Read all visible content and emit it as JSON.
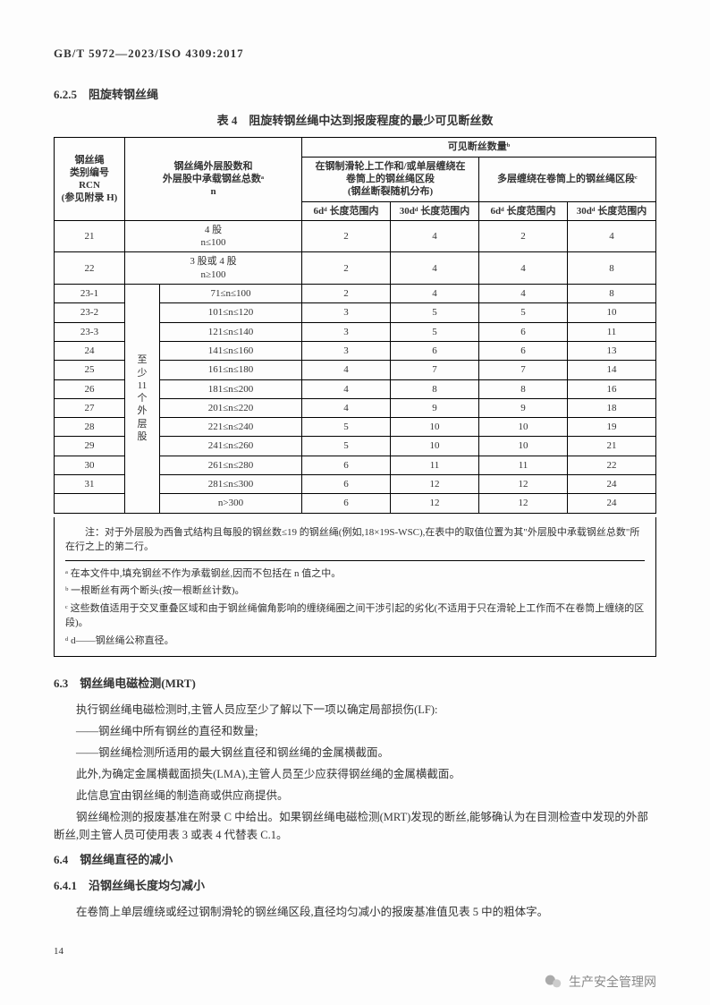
{
  "doc_code": "GB/T 5972—2023/ISO 4309:2017",
  "sec625": {
    "num": "6.2.5",
    "title": "阻旋转钢丝绳"
  },
  "table4": {
    "caption": "表 4　阻旋转钢丝绳中达到报废程度的最少可见断丝数",
    "head": {
      "rcn": "钢丝绳\n类别编号\nRCN\n(参见附录 H)",
      "layers": "钢丝绳外层股数和\n外层股中承载钢丝总数ᵃ\nn",
      "vis": "可见断丝数量ᵇ",
      "secA": "在钢制滑轮上工作和/或单层缠绕在\n卷筒上的钢丝绳区段\n(钢丝断裂随机分布)",
      "secB": "多层缠绕在卷筒上的钢丝绳区段ᶜ",
      "c6d": "6dᵈ 长度范围内",
      "c30d": "30dᵈ 长度范围内"
    },
    "rows_top": [
      {
        "rcn": "21",
        "lay": "4 股\nn≤100",
        "v": [
          "2",
          "4",
          "2",
          "4"
        ]
      },
      {
        "rcn": "22",
        "lay": "3 股或 4 股\nn≥100",
        "v": [
          "2",
          "4",
          "4",
          "8"
        ]
      }
    ],
    "mid_label": "至\n少\n11\n个\n外\n层\n股",
    "rows_mid": [
      {
        "rcn": "23-1",
        "rng": "71≤n≤100",
        "v": [
          "2",
          "4",
          "4",
          "8"
        ]
      },
      {
        "rcn": "23-2",
        "rng": "101≤n≤120",
        "v": [
          "3",
          "5",
          "5",
          "10"
        ]
      },
      {
        "rcn": "23-3",
        "rng": "121≤n≤140",
        "v": [
          "3",
          "5",
          "6",
          "11"
        ]
      },
      {
        "rcn": "24",
        "rng": "141≤n≤160",
        "v": [
          "3",
          "6",
          "6",
          "13"
        ]
      },
      {
        "rcn": "25",
        "rng": "161≤n≤180",
        "v": [
          "4",
          "7",
          "7",
          "14"
        ]
      },
      {
        "rcn": "26",
        "rng": "181≤n≤200",
        "v": [
          "4",
          "8",
          "8",
          "16"
        ]
      },
      {
        "rcn": "27",
        "rng": "201≤n≤220",
        "v": [
          "4",
          "9",
          "9",
          "18"
        ]
      },
      {
        "rcn": "28",
        "rng": "221≤n≤240",
        "v": [
          "5",
          "10",
          "10",
          "19"
        ]
      },
      {
        "rcn": "29",
        "rng": "241≤n≤260",
        "v": [
          "5",
          "10",
          "10",
          "21"
        ]
      },
      {
        "rcn": "30",
        "rng": "261≤n≤280",
        "v": [
          "6",
          "11",
          "11",
          "22"
        ]
      },
      {
        "rcn": "31",
        "rng": "281≤n≤300",
        "v": [
          "6",
          "12",
          "12",
          "24"
        ]
      },
      {
        "rcn": "",
        "rng": "n>300",
        "v": [
          "6",
          "12",
          "12",
          "24"
        ]
      }
    ],
    "notes": {
      "main": "注：对于外层股为西鲁式结构且每股的钢丝数≤19 的钢丝绳(例如,18×19S-WSC),在表中的取值位置为其\"外层股中承载钢丝总数\"所在行之上的第二行。",
      "a": "ᵃ 在本文件中,填充钢丝不作为承载钢丝,因而不包括在 n 值之中。",
      "b": "ᵇ 一根断丝有两个断头(按一根断丝计数)。",
      "c": "ᶜ 这些数值适用于交叉重叠区域和由于钢丝绳偏角影响的缠绕绳圈之间干涉引起的劣化(不适用于只在滑轮上工作而不在卷筒上缠绕的区段)。",
      "d": "ᵈ d——钢丝绳公称直径。"
    }
  },
  "sec63": {
    "num": "6.3",
    "title": "钢丝绳电磁检测(MRT)",
    "p1": "执行钢丝绳电磁检测时,主管人员应至少了解以下一项以确定局部损伤(LF):",
    "b1": "——钢丝绳中所有钢丝的直径和数量;",
    "b2": "——钢丝绳检测所适用的最大钢丝直径和钢丝绳的金属横截面。",
    "p2": "此外,为确定金属横截面损失(LMA),主管人员至少应获得钢丝绳的金属横截面。",
    "p3": "此信息宜由钢丝绳的制造商或供应商提供。",
    "p4": "钢丝绳检测的报废基准在附录 C 中给出。如果钢丝绳电磁检测(MRT)发现的断丝,能够确认为在目测检查中发现的外部断丝,则主管人员可使用表 3 或表 4 代替表 C.1。"
  },
  "sec64": {
    "num": "6.4",
    "title": "钢丝绳直径的减小"
  },
  "sec641": {
    "num": "6.4.1",
    "title": "沿钢丝绳长度均匀减小",
    "p1": "在卷筒上单层缠绕或经过钢制滑轮的钢丝绳区段,直径均匀减小的报废基准值见表 5 中的粗体字。"
  },
  "page_num": "14",
  "watermark": "生产安全管理网"
}
